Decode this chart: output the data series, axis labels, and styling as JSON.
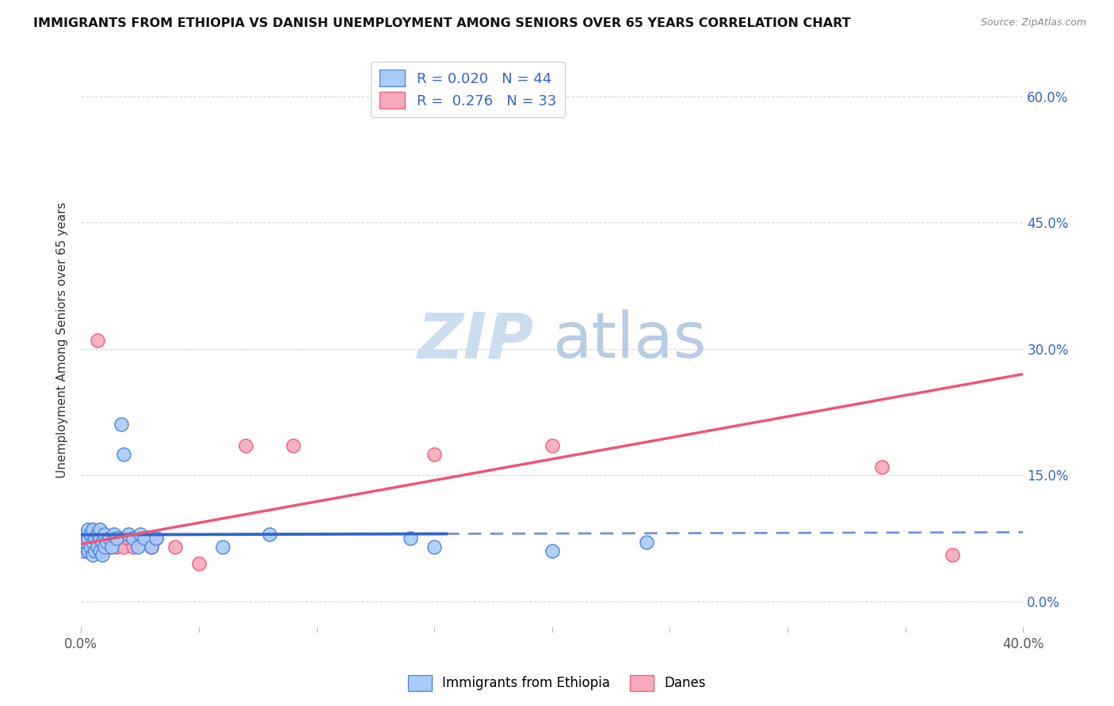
{
  "title": "IMMIGRANTS FROM ETHIOPIA VS DANISH UNEMPLOYMENT AMONG SENIORS OVER 65 YEARS CORRELATION CHART",
  "source": "Source: ZipAtlas.com",
  "ylabel": "Unemployment Among Seniors over 65 years",
  "xlim": [
    0.0,
    0.4
  ],
  "ylim": [
    -0.03,
    0.65
  ],
  "x_ticks": [
    0.0,
    0.05,
    0.1,
    0.15,
    0.2,
    0.25,
    0.3,
    0.35,
    0.4
  ],
  "y_ticks": [
    0.0,
    0.15,
    0.3,
    0.45,
    0.6
  ],
  "y_tick_labels_right": [
    "0.0%",
    "15.0%",
    "30.0%",
    "45.0%",
    "60.0%"
  ],
  "legend_label1": "Immigrants from Ethiopia",
  "legend_label2": "Danes",
  "R1": "0.020",
  "N1": "44",
  "R2": "0.276",
  "N2": "33",
  "color_blue": "#aaccf8",
  "color_pink": "#f8aabb",
  "color_blue_edge": "#5588dd",
  "color_pink_edge": "#f06080",
  "color_blue_line": "#3366cc",
  "color_pink_line": "#ee5577",
  "color_blue_text": "#3366cc",
  "watermark_color": "#ccddf0",
  "scatter_blue_x": [
    0.001,
    0.001,
    0.002,
    0.002,
    0.002,
    0.003,
    0.003,
    0.003,
    0.004,
    0.004,
    0.005,
    0.005,
    0.005,
    0.006,
    0.006,
    0.007,
    0.007,
    0.008,
    0.008,
    0.008,
    0.009,
    0.009,
    0.01,
    0.01,
    0.011,
    0.012,
    0.013,
    0.014,
    0.015,
    0.017,
    0.018,
    0.02,
    0.022,
    0.024,
    0.025,
    0.027,
    0.03,
    0.032,
    0.06,
    0.08,
    0.14,
    0.15,
    0.2,
    0.24
  ],
  "scatter_blue_y": [
    0.06,
    0.075,
    0.065,
    0.08,
    0.07,
    0.06,
    0.075,
    0.085,
    0.065,
    0.08,
    0.055,
    0.07,
    0.085,
    0.06,
    0.075,
    0.065,
    0.08,
    0.06,
    0.075,
    0.085,
    0.055,
    0.07,
    0.065,
    0.08,
    0.07,
    0.075,
    0.065,
    0.08,
    0.075,
    0.21,
    0.175,
    0.08,
    0.075,
    0.065,
    0.08,
    0.075,
    0.065,
    0.075,
    0.065,
    0.08,
    0.075,
    0.065,
    0.06,
    0.07
  ],
  "scatter_pink_x": [
    0.001,
    0.002,
    0.002,
    0.003,
    0.003,
    0.004,
    0.005,
    0.005,
    0.006,
    0.007,
    0.007,
    0.008,
    0.009,
    0.01,
    0.01,
    0.012,
    0.013,
    0.015,
    0.017,
    0.018,
    0.02,
    0.022,
    0.025,
    0.03,
    0.032,
    0.04,
    0.05,
    0.07,
    0.09,
    0.15,
    0.2,
    0.34,
    0.37
  ],
  "scatter_pink_y": [
    0.065,
    0.06,
    0.075,
    0.06,
    0.075,
    0.065,
    0.06,
    0.075,
    0.065,
    0.31,
    0.065,
    0.075,
    0.06,
    0.065,
    0.075,
    0.065,
    0.075,
    0.065,
    0.075,
    0.065,
    0.075,
    0.065,
    0.075,
    0.065,
    0.075,
    0.065,
    0.045,
    0.185,
    0.185,
    0.175,
    0.185,
    0.16,
    0.055
  ],
  "blue_line_x0": 0.0,
  "blue_line_x_solid_end": 0.155,
  "blue_line_x1": 0.4,
  "blue_line_y0": 0.079,
  "blue_line_y1": 0.082,
  "pink_line_x0": 0.0,
  "pink_line_x1": 0.4,
  "pink_line_y0": 0.068,
  "pink_line_y1": 0.27
}
